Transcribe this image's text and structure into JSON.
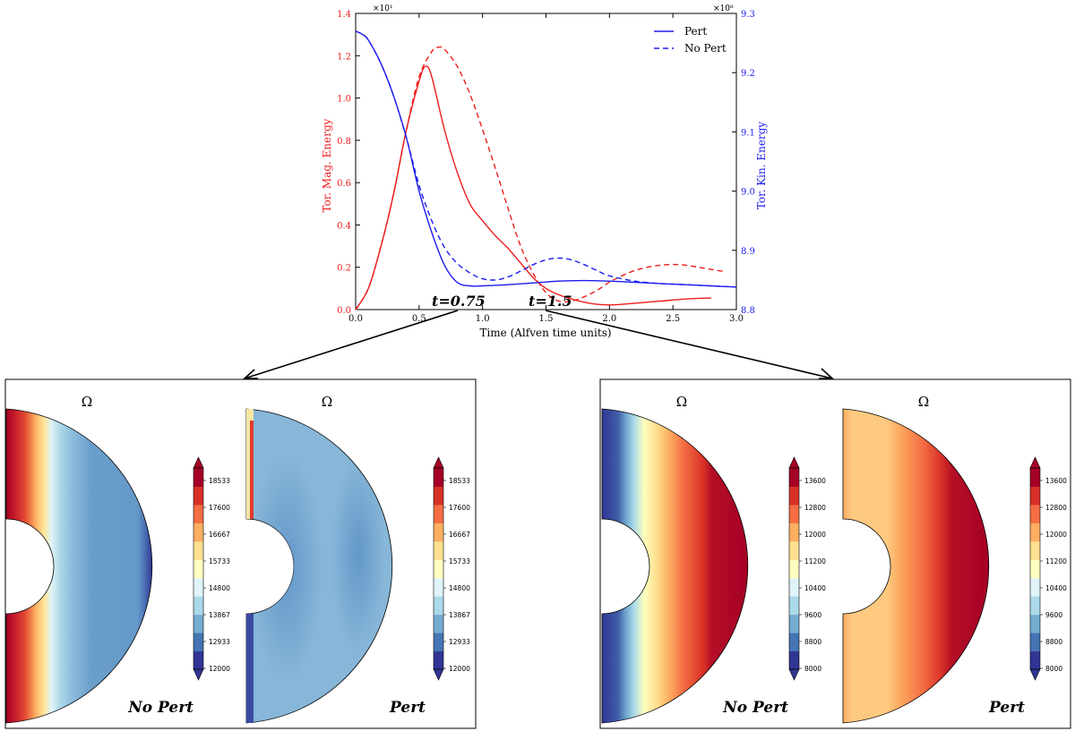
{
  "chart_data": [
    {
      "type": "line",
      "xlabel": "Time (Alfven time units)",
      "ylabel_left": "Tor. Mag. Energy",
      "ylabel_right": "Tor. Kin. Energy",
      "left_exponent": "×10¹",
      "right_exponent": "×10⁸",
      "xlim": [
        0,
        3.0
      ],
      "ylim_left": [
        0,
        1.4
      ],
      "ylim_right": [
        8.8,
        9.3
      ],
      "xticks": [
        "0.0",
        "0.5",
        "1.0",
        "1.5",
        "2.0",
        "2.5",
        "3.0"
      ],
      "yticks_left": [
        "0.0",
        "0.2",
        "0.4",
        "0.6",
        "0.8",
        "1.0",
        "1.2",
        "1.4"
      ],
      "yticks_right": [
        "8.8",
        "8.9",
        "9.0",
        "9.1",
        "9.2",
        "9.3"
      ],
      "legend": [
        "Pert",
        "No Pert"
      ],
      "legend_position": "top-right",
      "annotations": [
        "t=0.75",
        "t=1.5"
      ],
      "colors": {
        "magnetic": "#ee1c1c",
        "kinetic": "#1c1cee"
      },
      "series": [
        {
          "name": "Tor. Mag. Energy (Pert)",
          "axis": "left",
          "style": "solid",
          "color": "#ee1c1c",
          "x": [
            0,
            0.1,
            0.2,
            0.3,
            0.4,
            0.5,
            0.55,
            0.6,
            0.7,
            0.8,
            0.9,
            1.0,
            1.1,
            1.2,
            1.3,
            1.4,
            1.5,
            1.6,
            1.7,
            1.8,
            1.9,
            2.0,
            2.1,
            2.2,
            2.4,
            2.6,
            2.8
          ],
          "y": [
            0,
            0.1,
            0.3,
            0.55,
            0.85,
            1.08,
            1.15,
            1.1,
            0.85,
            0.65,
            0.5,
            0.42,
            0.35,
            0.29,
            0.22,
            0.15,
            0.1,
            0.07,
            0.05,
            0.035,
            0.025,
            0.022,
            0.025,
            0.03,
            0.04,
            0.05,
            0.055
          ]
        },
        {
          "name": "Tor. Mag. Energy (No Pert)",
          "axis": "left",
          "style": "dashed",
          "color": "#ee1c1c",
          "x": [
            0,
            0.1,
            0.2,
            0.3,
            0.4,
            0.5,
            0.6,
            0.65,
            0.7,
            0.8,
            0.9,
            1.0,
            1.1,
            1.2,
            1.3,
            1.4,
            1.5,
            1.6,
            1.7,
            1.8,
            1.9,
            2.0,
            2.1,
            2.2,
            2.3,
            2.4,
            2.5,
            2.6,
            2.7,
            2.8,
            2.9
          ],
          "y": [
            0,
            0.1,
            0.3,
            0.55,
            0.85,
            1.1,
            1.22,
            1.24,
            1.23,
            1.15,
            1.02,
            0.85,
            0.67,
            0.48,
            0.3,
            0.17,
            0.08,
            0.04,
            0.04,
            0.06,
            0.09,
            0.13,
            0.16,
            0.185,
            0.2,
            0.21,
            0.213,
            0.21,
            0.2,
            0.19,
            0.18
          ]
        },
        {
          "name": "Tor. Kin. Energy (Pert)",
          "axis": "right",
          "style": "solid",
          "color": "#1c1cee",
          "x": [
            0,
            0.05,
            0.1,
            0.2,
            0.3,
            0.4,
            0.5,
            0.6,
            0.7,
            0.8,
            0.9,
            1.0,
            1.2,
            1.4,
            1.6,
            1.8,
            2.0,
            2.2,
            2.4,
            2.6,
            2.8,
            3.0
          ],
          "y": [
            9.27,
            9.265,
            9.255,
            9.215,
            9.16,
            9.09,
            9.0,
            8.93,
            8.875,
            8.846,
            8.84,
            8.84,
            8.842,
            8.845,
            8.848,
            8.849,
            8.848,
            8.846,
            8.844,
            8.842,
            8.84,
            8.838
          ]
        },
        {
          "name": "Tor. Kin. Energy (No Pert)",
          "axis": "right",
          "style": "dashed",
          "color": "#1c1cee",
          "x": [
            0,
            0.05,
            0.1,
            0.2,
            0.3,
            0.4,
            0.5,
            0.6,
            0.7,
            0.8,
            0.9,
            1.0,
            1.1,
            1.2,
            1.3,
            1.4,
            1.5,
            1.6,
            1.7,
            1.8,
            1.9,
            2.0,
            2.2,
            2.4,
            2.6,
            2.8,
            3.0
          ],
          "y": [
            9.27,
            9.265,
            9.255,
            9.215,
            9.16,
            9.09,
            9.01,
            8.95,
            8.905,
            8.878,
            8.862,
            8.852,
            8.85,
            8.855,
            8.865,
            8.876,
            8.884,
            8.887,
            8.884,
            8.876,
            8.866,
            8.857,
            8.848,
            8.844,
            8.842,
            8.84,
            8.838
          ]
        }
      ]
    },
    {
      "type": "heatmap",
      "title": "Ω",
      "label": "No Pert",
      "annotation": "t=0.75",
      "colorbar_ticks": [
        "18533",
        "17600",
        "16667",
        "15733",
        "14800",
        "13867",
        "12933",
        "12000"
      ]
    },
    {
      "type": "heatmap",
      "title": "Ω",
      "label": "Pert",
      "annotation": "t=0.75",
      "colorbar_ticks": [
        "18533",
        "17600",
        "16667",
        "15733",
        "14800",
        "13867",
        "12933",
        "12000"
      ]
    },
    {
      "type": "heatmap",
      "title": "Ω",
      "label": "No Pert",
      "annotation": "t=1.5",
      "colorbar_ticks": [
        "13600",
        "12800",
        "12000",
        "11200",
        "10400",
        "9600",
        "8800",
        "8000"
      ]
    },
    {
      "type": "heatmap",
      "title": "Ω",
      "label": "Pert",
      "annotation": "t=1.5",
      "colorbar_ticks": [
        "13600",
        "12800",
        "12000",
        "11200",
        "10400",
        "9600",
        "8800",
        "8000"
      ]
    }
  ]
}
